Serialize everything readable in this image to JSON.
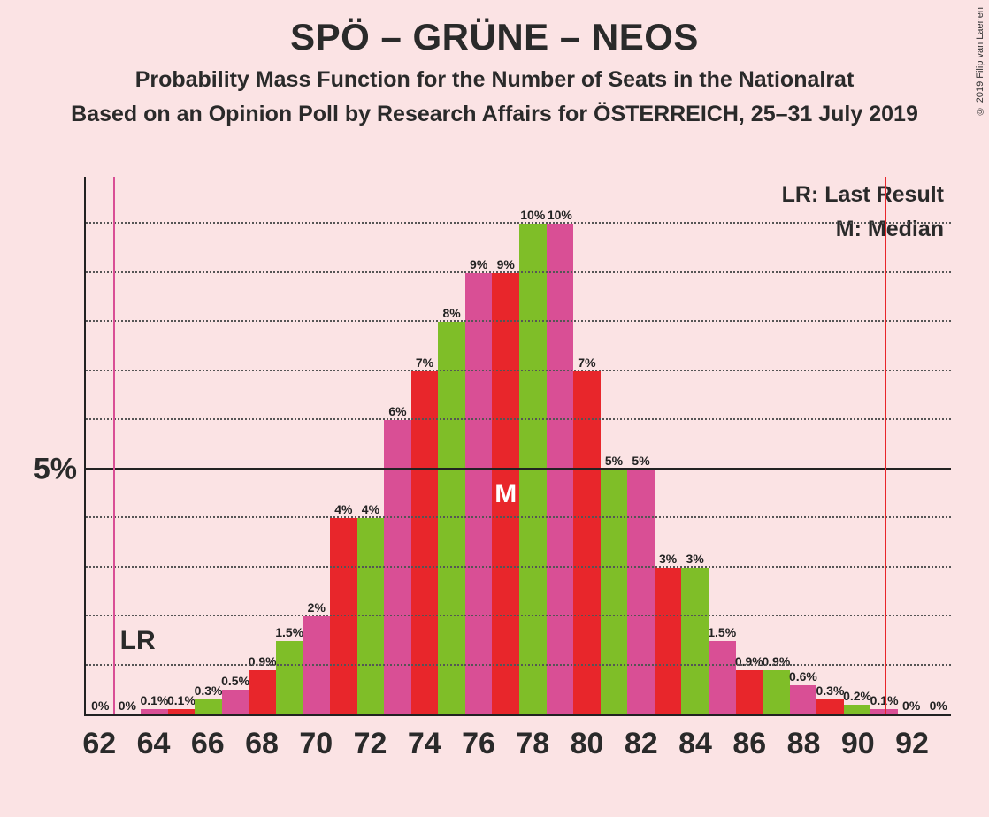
{
  "title": "SPÖ – GRÜNE – NEOS",
  "subtitle1": "Probability Mass Function for the Number of Seats in the Nationalrat",
  "subtitle2": "Based on an Opinion Poll by Research Affairs for ÖSTERREICH, 25–31 July 2019",
  "legend": {
    "lr": "LR: Last Result",
    "m": "M: Median"
  },
  "lr_label": "LR",
  "median_label": "M",
  "copyright": "© 2019 Filip van Laenen",
  "chart": {
    "type": "bar",
    "background_color": "#fbe3e4",
    "grid_color": "#555555",
    "axis_color": "#222222",
    "ymax": 11,
    "y_major": 5,
    "y_major_label": "5%",
    "y_minor_step": 1,
    "colors": {
      "red": "#e8262b",
      "green": "#7fbe28",
      "pink": "#d94f95"
    },
    "median_index": 15,
    "lr_line_x": 62.5,
    "lr_line_color": "#d94f95",
    "result_line_x": 91.0,
    "result_line_color": "#e8262b",
    "x_start": 62,
    "x_ticks": [
      62,
      64,
      66,
      68,
      70,
      72,
      74,
      76,
      78,
      80,
      82,
      84,
      86,
      88,
      90,
      92
    ],
    "bars": [
      {
        "x": 62,
        "v": 0,
        "label": "0%",
        "c": "red"
      },
      {
        "x": 63,
        "v": 0,
        "label": "0%",
        "c": "green"
      },
      {
        "x": 64,
        "v": 0.1,
        "label": "0.1%",
        "c": "pink"
      },
      {
        "x": 65,
        "v": 0.1,
        "label": "0.1%",
        "c": "red"
      },
      {
        "x": 66,
        "v": 0.3,
        "label": "0.3%",
        "c": "green"
      },
      {
        "x": 67,
        "v": 0.5,
        "label": "0.5%",
        "c": "pink"
      },
      {
        "x": 68,
        "v": 0.9,
        "label": "0.9%",
        "c": "red"
      },
      {
        "x": 69,
        "v": 1.5,
        "label": "1.5%",
        "c": "green"
      },
      {
        "x": 70,
        "v": 2,
        "label": "2%",
        "c": "pink"
      },
      {
        "x": 71,
        "v": 4,
        "label": "4%",
        "c": "red"
      },
      {
        "x": 72,
        "v": 4,
        "label": "4%",
        "c": "green"
      },
      {
        "x": 73,
        "v": 6,
        "label": "6%",
        "c": "pink"
      },
      {
        "x": 74,
        "v": 7,
        "label": "7%",
        "c": "red"
      },
      {
        "x": 75,
        "v": 8,
        "label": "8%",
        "c": "green"
      },
      {
        "x": 76,
        "v": 9,
        "label": "9%",
        "c": "pink"
      },
      {
        "x": 77,
        "v": 9,
        "label": "9%",
        "c": "red"
      },
      {
        "x": 78,
        "v": 10,
        "label": "10%",
        "c": "green"
      },
      {
        "x": 79,
        "v": 10,
        "label": "10%",
        "c": "pink"
      },
      {
        "x": 80,
        "v": 7,
        "label": "7%",
        "c": "red"
      },
      {
        "x": 81,
        "v": 5,
        "label": "5%",
        "c": "green"
      },
      {
        "x": 82,
        "v": 5,
        "label": "5%",
        "c": "pink"
      },
      {
        "x": 83,
        "v": 3,
        "label": "3%",
        "c": "red"
      },
      {
        "x": 84,
        "v": 3,
        "label": "3%",
        "c": "green"
      },
      {
        "x": 85,
        "v": 1.5,
        "label": "1.5%",
        "c": "pink"
      },
      {
        "x": 86,
        "v": 0.9,
        "label": "0.9%",
        "c": "red"
      },
      {
        "x": 87,
        "v": 0.9,
        "label": "0.9%",
        "c": "green"
      },
      {
        "x": 88,
        "v": 0.6,
        "label": "0.6%",
        "c": "pink"
      },
      {
        "x": 89,
        "v": 0.3,
        "label": "0.3%",
        "c": "red"
      },
      {
        "x": 90,
        "v": 0.2,
        "label": "0.2%",
        "c": "green"
      },
      {
        "x": 91,
        "v": 0.1,
        "label": "0.1%",
        "c": "pink"
      },
      {
        "x": 92,
        "v": 0,
        "label": "0%",
        "c": "red"
      },
      {
        "x": 93,
        "v": 0,
        "label": "0%",
        "c": "green"
      }
    ]
  }
}
